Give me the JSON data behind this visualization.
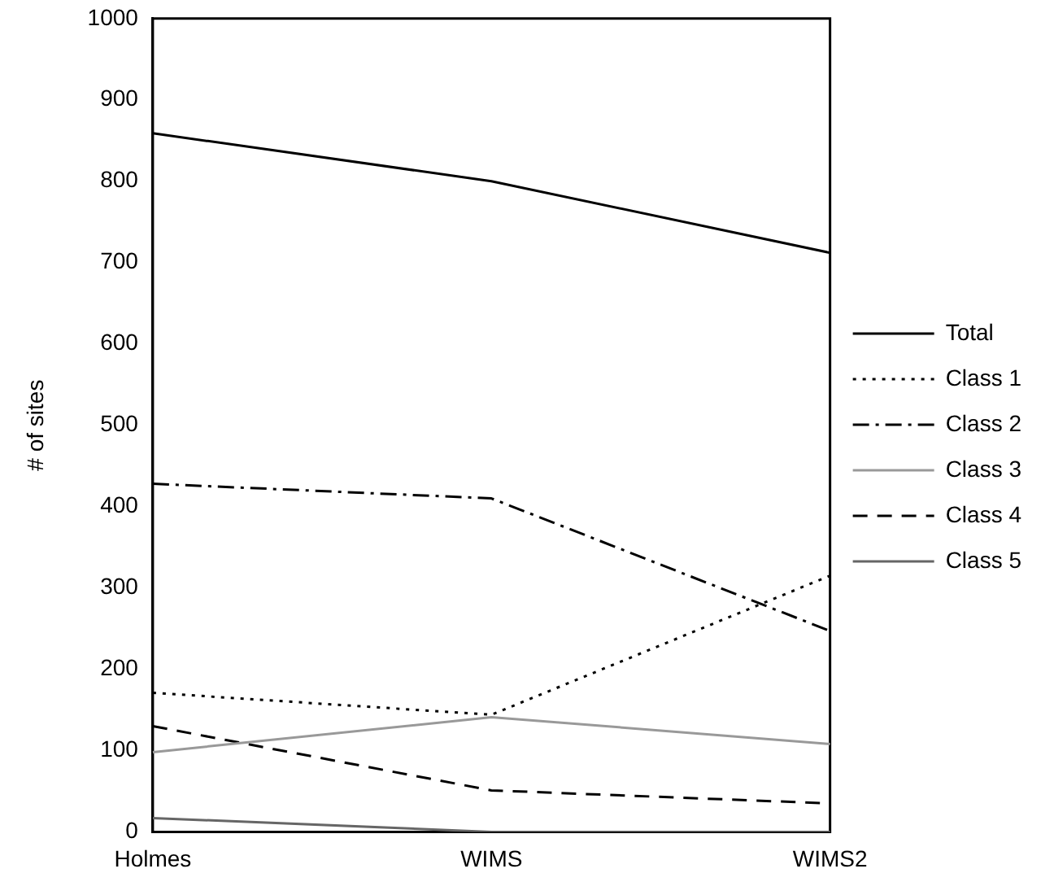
{
  "chart_data": {
    "type": "line",
    "ylabel": "# of sites",
    "categories": [
      "Holmes",
      "WIMS",
      "WIMS2"
    ],
    "series": [
      {
        "name": "Total",
        "color": "#000000",
        "line_style": "solid",
        "values": [
          859,
          800,
          712
        ]
      },
      {
        "name": "Class 1",
        "color": "#000000",
        "line_style": "dotted",
        "values": [
          171,
          144,
          315
        ]
      },
      {
        "name": "Class 2",
        "color": "#000000",
        "line_style": "dashdot",
        "values": [
          428,
          410,
          247
        ]
      },
      {
        "name": "Class 3",
        "color": "#999999",
        "line_style": "solid",
        "values": [
          98,
          141,
          108
        ]
      },
      {
        "name": "Class 4",
        "color": "#000000",
        "line_style": "dashed",
        "values": [
          130,
          51,
          35
        ]
      },
      {
        "name": "Class 5",
        "color": "#666666",
        "line_style": "solid",
        "values": [
          17,
          0,
          0
        ]
      }
    ],
    "ylim": [
      0,
      1000
    ],
    "yticks": [
      0,
      100,
      200,
      300,
      400,
      500,
      600,
      700,
      800,
      900,
      1000
    ],
    "grid": false,
    "legend": "right",
    "marker": "none"
  }
}
